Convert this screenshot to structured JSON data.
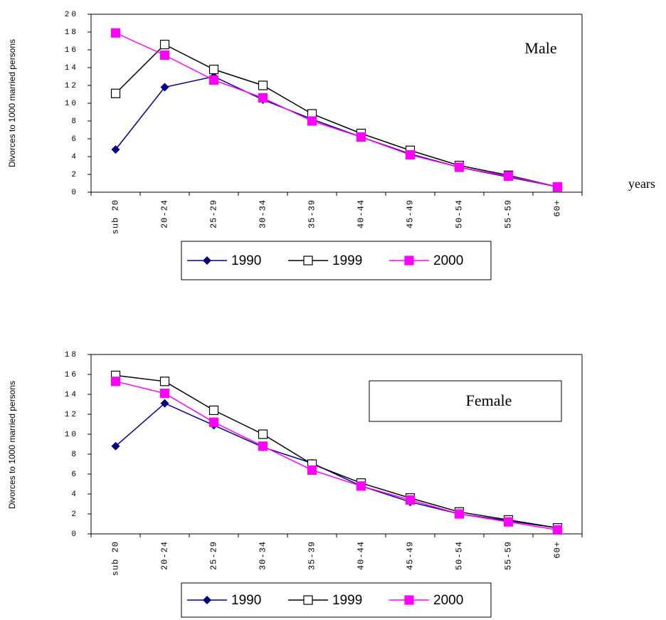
{
  "chart_data": [
    {
      "type": "line",
      "annotation": "Male",
      "x_label": "years",
      "y_label": "Divorces to 1000 married persons",
      "categories": [
        "sub 20",
        "20-24",
        "25-29",
        "30-34",
        "35-39",
        "40-44",
        "45-49",
        "50-54",
        "55-59",
        "60+"
      ],
      "series": [
        {
          "name": "1990",
          "color": "#000080",
          "marker": "diamond",
          "values": [
            4.8,
            11.8,
            13.0,
            10.4,
            8.2,
            6.2,
            4.3,
            2.8,
            1.7,
            0.6
          ]
        },
        {
          "name": "1999",
          "color": "#000000",
          "marker": "open-square",
          "values": [
            11.1,
            16.6,
            13.8,
            12.0,
            8.8,
            6.6,
            4.7,
            3.0,
            1.9,
            0.6
          ]
        },
        {
          "name": "2000",
          "color": "#ff00ff",
          "marker": "square",
          "values": [
            17.9,
            15.4,
            12.6,
            10.6,
            8.0,
            6.2,
            4.2,
            2.8,
            1.8,
            0.6
          ]
        }
      ],
      "ylim": [
        0,
        20
      ],
      "yticks": [
        0,
        2,
        4,
        6,
        8,
        10,
        12,
        14,
        16,
        18,
        20
      ],
      "legend": "bottom"
    },
    {
      "type": "line",
      "annotation": "Female",
      "y_label": "Divorces to 1000 married persons",
      "categories": [
        "sub 20",
        "20-24",
        "25-29",
        "30-34",
        "35-39",
        "40-44",
        "45-49",
        "50-54",
        "55-59",
        "60+"
      ],
      "series": [
        {
          "name": "1990",
          "color": "#000080",
          "marker": "diamond",
          "values": [
            8.8,
            13.1,
            10.9,
            8.7,
            7.1,
            4.8,
            3.2,
            2.0,
            1.3,
            0.6
          ]
        },
        {
          "name": "1999",
          "color": "#000000",
          "marker": "open-square",
          "values": [
            15.9,
            15.3,
            12.4,
            10.0,
            7.0,
            5.1,
            3.6,
            2.2,
            1.4,
            0.6
          ]
        },
        {
          "name": "2000",
          "color": "#ff00ff",
          "marker": "square",
          "values": [
            15.3,
            14.1,
            11.2,
            8.8,
            6.4,
            4.8,
            3.4,
            2.0,
            1.2,
            0.4
          ]
        }
      ],
      "ylim": [
        0,
        18
      ],
      "yticks": [
        0,
        2,
        4,
        6,
        8,
        10,
        12,
        14,
        16,
        18
      ],
      "legend": "bottom"
    }
  ]
}
